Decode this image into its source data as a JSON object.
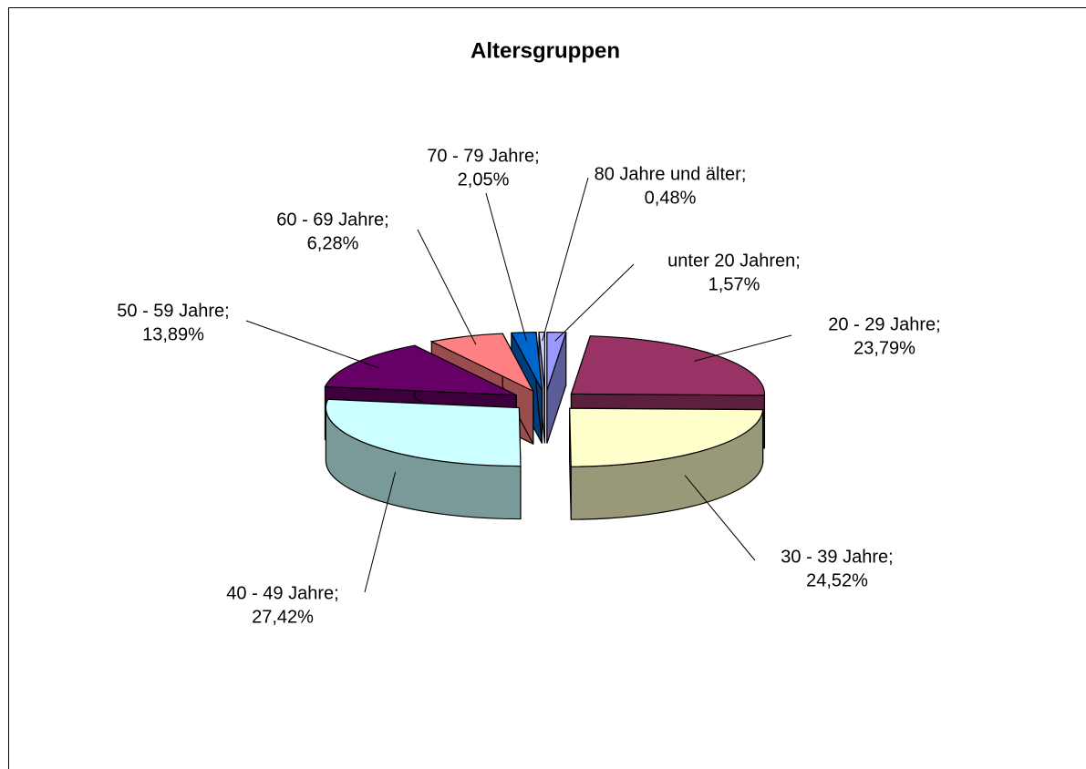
{
  "chart_data": {
    "type": "pie",
    "title": "Altersgruppen",
    "categories": [
      "unter 20 Jahren;",
      "20 - 29 Jahre;",
      "30 - 39 Jahre;",
      "40 - 49 Jahre;",
      "50 - 59 Jahre;",
      "60 - 69 Jahre;",
      "70 - 79 Jahre;",
      "80 Jahre und älter;"
    ],
    "values": [
      1.57,
      23.79,
      24.52,
      27.42,
      13.89,
      6.28,
      2.05,
      0.48
    ],
    "value_labels": [
      "1,57%",
      "23,79%",
      "24,52%",
      "27,42%",
      "13,89%",
      "6,28%",
      "2,05%",
      "0,48%"
    ],
    "colors": [
      "#9999ff",
      "#993366",
      "#ffffcc",
      "#ccffff",
      "#660066",
      "#ff8080",
      "#0066cc",
      "#ccccff"
    ]
  }
}
